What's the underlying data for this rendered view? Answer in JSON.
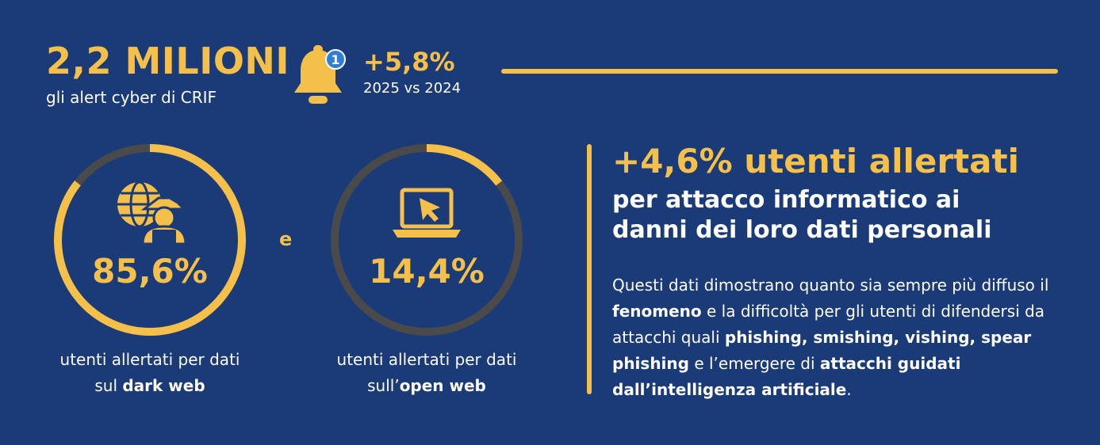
{
  "header": {
    "headline_number": "2,2 MILIONI",
    "headline_sub": "gli alert cyber di CRIF",
    "bell_badge": "1",
    "growth_value": "+5,8%",
    "growth_sub": "2025 vs 2024"
  },
  "rings": [
    {
      "percent_label": "85,6%",
      "fraction": 0.856,
      "icon": "hacker-globe-icon",
      "caption_line1": "utenti allertati per dati",
      "caption_pre": "sul ",
      "caption_bold": "dark web"
    },
    {
      "percent_label": "14,4%",
      "fraction": 0.144,
      "icon": "laptop-cursor-icon",
      "caption_line1": "utenti allertati per dati",
      "caption_pre": "sull’",
      "caption_bold": "open web"
    }
  ],
  "connector": "e",
  "right": {
    "title": "+4,6% utenti allertati",
    "subtitle_line1": "per attacco informatico ai",
    "subtitle_line2": "danni dei loro dati personali",
    "body": [
      {
        "t": "Questi dati dimostrano quanto sia sempre più diffuso il ",
        "b": false
      },
      {
        "t": "fenomeno",
        "b": true
      },
      {
        "t": " e la difficoltà per gli utenti di difendersi da attacchi quali ",
        "b": false
      },
      {
        "t": "phishing, smishing, vishing, spear phishing",
        "b": true
      },
      {
        "t": " e l’emergere di ",
        "b": false
      },
      {
        "t": "attacchi guidati dall’intelligenza artificiale",
        "b": true
      },
      {
        "t": ".",
        "b": false
      }
    ]
  },
  "colors": {
    "background": "#1a3a78",
    "accent": "#f5c04a",
    "track": "#4a4a4a",
    "badge": "#2f7fd6"
  }
}
